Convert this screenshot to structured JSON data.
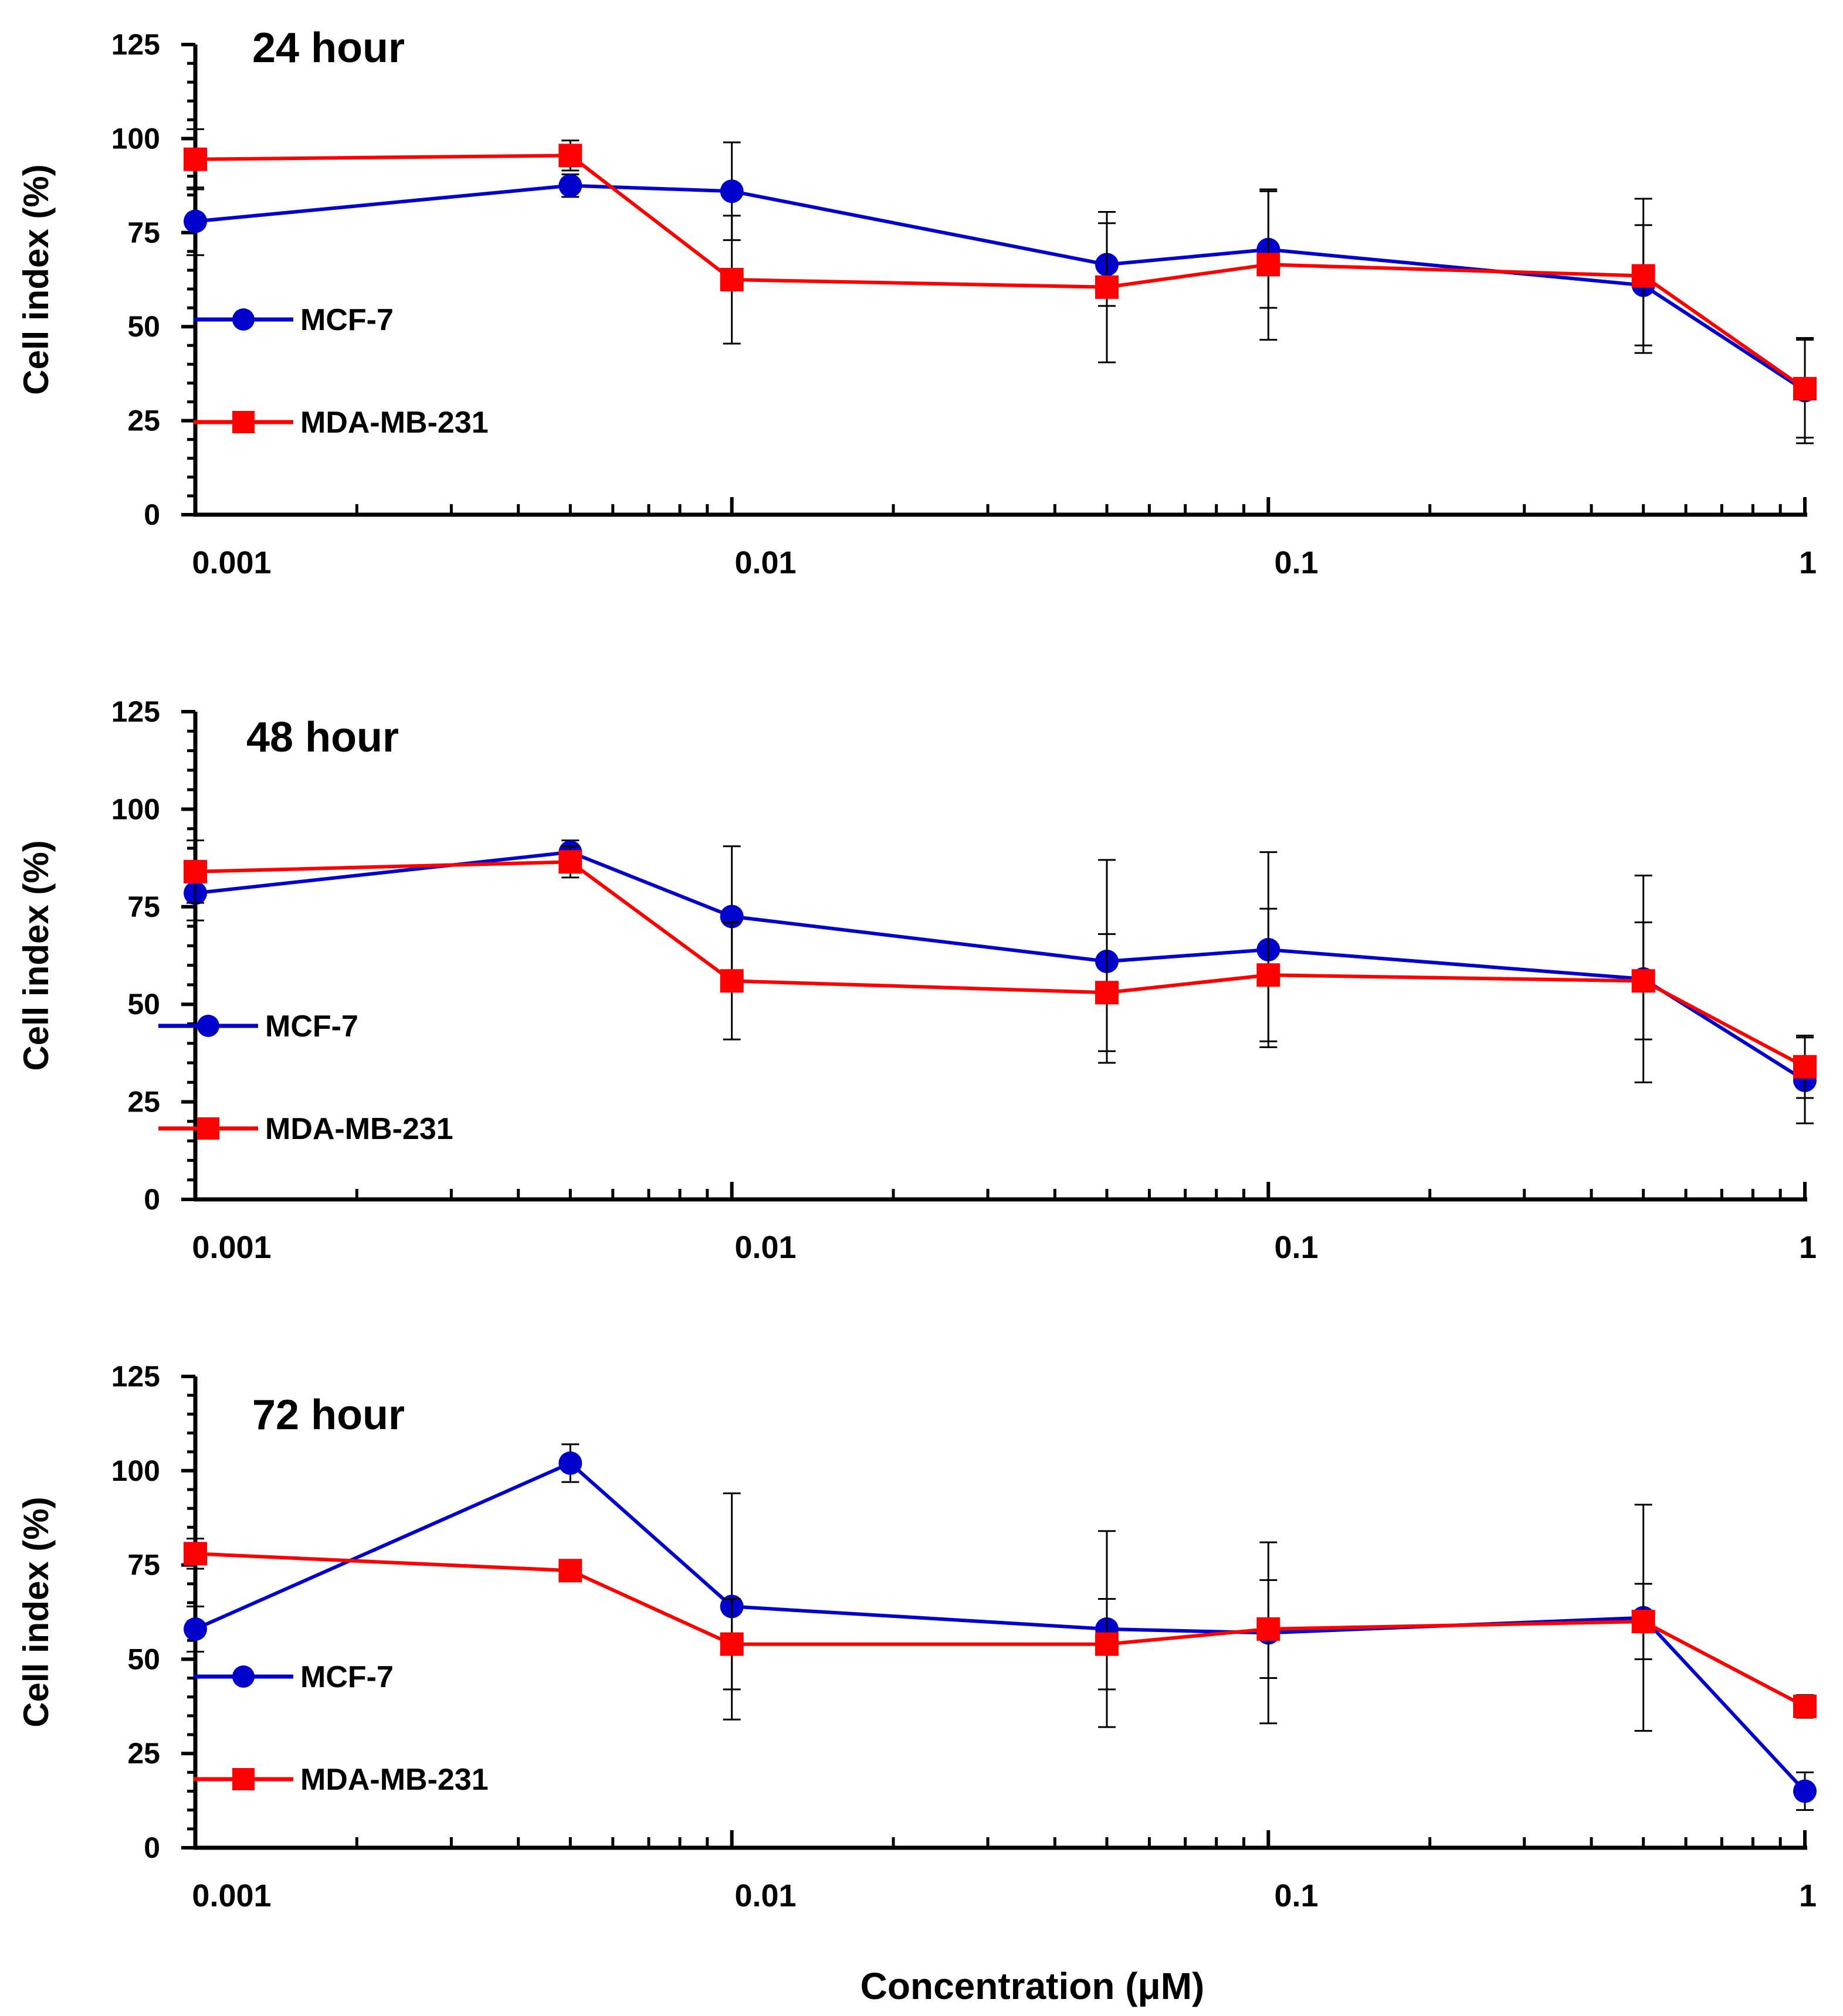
{
  "figure": {
    "xlabel": "Concentration (μM)"
  },
  "chart_data": [
    {
      "type": "line",
      "title": "24 hour",
      "ylabel": "Cell index (%)",
      "xscale": "log",
      "xlim": [
        0.001,
        1
      ],
      "ylim": [
        0,
        125
      ],
      "yticks": [
        "0",
        "25",
        "50",
        "75",
        "100",
        "125"
      ],
      "xticks": [
        "0.001",
        "0.01",
        "0.1",
        "1"
      ],
      "legend_position": "left",
      "x": [
        0.001,
        0.005,
        0.01,
        0.05,
        0.1,
        0.5,
        1
      ],
      "series": [
        {
          "name": "MCF-7",
          "color": "#0000cc",
          "marker": "circle",
          "values": [
            78,
            87.5,
            86,
            66.5,
            70.5,
            61,
            33
          ],
          "errors": [
            9,
            3,
            13,
            11,
            15.5,
            16,
            14
          ]
        },
        {
          "name": "MDA-MB-231",
          "color": "#ff0000",
          "marker": "square",
          "values": [
            94.5,
            95.5,
            62.5,
            60.5,
            66.5,
            63.5,
            33.5
          ],
          "errors": [
            8,
            4,
            17,
            20,
            20,
            20.5,
            13
          ]
        }
      ]
    },
    {
      "type": "line",
      "title": "48 hour",
      "ylabel": "Cell index (%)",
      "xscale": "log",
      "xlim": [
        0.001,
        1
      ],
      "ylim": [
        0,
        125
      ],
      "yticks": [
        "0",
        "25",
        "50",
        "75",
        "100",
        "125"
      ],
      "xticks": [
        "0.001",
        "0.01",
        "0.1",
        "1"
      ],
      "legend_position": "left",
      "x": [
        0.001,
        0.005,
        0.01,
        0.05,
        0.1,
        0.5,
        1
      ],
      "series": [
        {
          "name": "MCF-7",
          "color": "#0000cc",
          "marker": "circle",
          "values": [
            78.5,
            89,
            72.5,
            61,
            64,
            56.5,
            30.5
          ],
          "errors": [
            7,
            3,
            18,
            26,
            25,
            26.5,
            11
          ]
        },
        {
          "name": "MDA-MB-231",
          "color": "#ff0000",
          "marker": "square",
          "values": [
            84,
            86.5,
            56,
            53,
            57.5,
            56,
            34
          ],
          "errors": [
            8,
            4,
            15,
            15,
            17,
            15,
            8
          ]
        }
      ]
    },
    {
      "type": "line",
      "title": "72 hour",
      "ylabel": "Cell index (%)",
      "xscale": "log",
      "xlim": [
        0.001,
        1
      ],
      "ylim": [
        0,
        125
      ],
      "yticks": [
        "0",
        "25",
        "50",
        "75",
        "100",
        "125"
      ],
      "xticks": [
        "0.001",
        "0.01",
        "0.1",
        "1"
      ],
      "legend_position": "left",
      "x": [
        0.001,
        0.005,
        0.01,
        0.05,
        0.1,
        0.5,
        1
      ],
      "series": [
        {
          "name": "MCF-7",
          "color": "#0000cc",
          "marker": "circle",
          "values": [
            58,
            102,
            64,
            58,
            57,
            61,
            15
          ],
          "errors": [
            6,
            5,
            30,
            26,
            24,
            30,
            5
          ]
        },
        {
          "name": "MDA-MB-231",
          "color": "#ff0000",
          "marker": "square",
          "values": [
            78,
            73.5,
            54,
            54,
            58,
            60,
            37.5
          ],
          "errors": [
            4,
            2,
            12,
            12,
            13,
            10,
            3
          ]
        }
      ]
    }
  ]
}
